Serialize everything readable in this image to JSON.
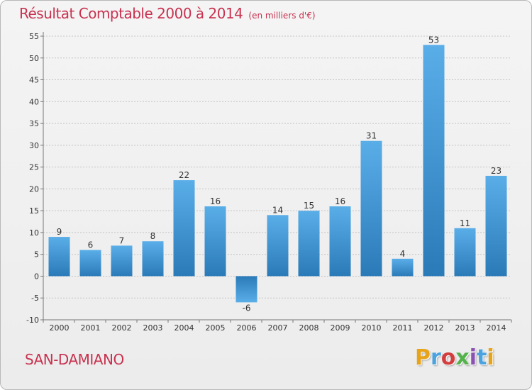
{
  "header": {
    "title": "Résultat Comptable 2000 à 2014",
    "unit": "(en milliers d'€)"
  },
  "footer": {
    "commune": "SAN-DAMIANO",
    "logo_text": "Proxiti"
  },
  "colors": {
    "accent_text": "#c8324f",
    "bar_top": "#5aaee8",
    "bar_bottom": "#2a7ab8"
  },
  "chart_data": {
    "type": "bar",
    "title": "Résultat Comptable 2000 à 2014",
    "subtitle": "(en milliers d'€)",
    "xlabel": "",
    "ylabel": "",
    "categories": [
      "2000",
      "2001",
      "2002",
      "2003",
      "2004",
      "2005",
      "2006",
      "2007",
      "2008",
      "2009",
      "2010",
      "2011",
      "2012",
      "2013",
      "2014"
    ],
    "values": [
      9,
      6,
      7,
      8,
      22,
      16,
      -6,
      14,
      15,
      16,
      31,
      4,
      53,
      11,
      23
    ],
    "ylim": [
      -10,
      55
    ],
    "yticks": [
      -10,
      -5,
      0,
      5,
      10,
      15,
      20,
      25,
      30,
      35,
      40,
      45,
      50,
      55
    ],
    "grid": "horizontal-dashed",
    "legend": "none"
  }
}
